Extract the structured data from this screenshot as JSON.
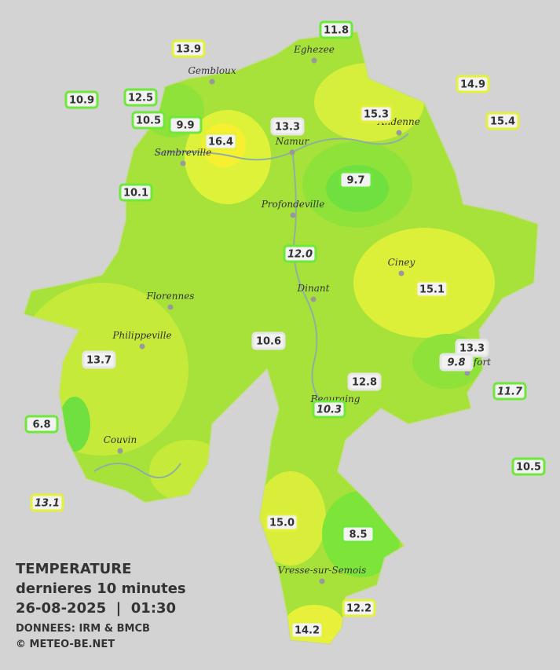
{
  "title": {
    "line1": "TEMPERATURE",
    "line2": "dernieres 10 minutes",
    "line3": "26-08-2025  |  01:30",
    "source": "DONNEES: IRM & BMCB",
    "copyright": "© METEO-BE.NET"
  },
  "cities": [
    "Eghezee",
    "Gembloux",
    "Andenne",
    "Namur",
    "Sambreville",
    "Profondeville",
    "Ciney",
    "Dinant",
    "Florennes",
    "Philippeville",
    "Rochefort",
    "Beauraing",
    "Couvin",
    "Vresse-sur-Semois"
  ],
  "stations": [
    "11.8",
    "13.9",
    "14.9",
    "10.9",
    "12.5",
    "15.3",
    "10.5",
    "9.9",
    "15.4",
    "13.3",
    "16.4",
    "9.7",
    "10.1",
    "12.0",
    "15.1",
    "10.6",
    "13.3",
    "13.7",
    "9.8",
    "11.7",
    "12.8",
    "10.3",
    "6.8",
    "10.5",
    "13.1",
    "15.0",
    "8.5",
    "12.2",
    "14.2"
  ]
}
